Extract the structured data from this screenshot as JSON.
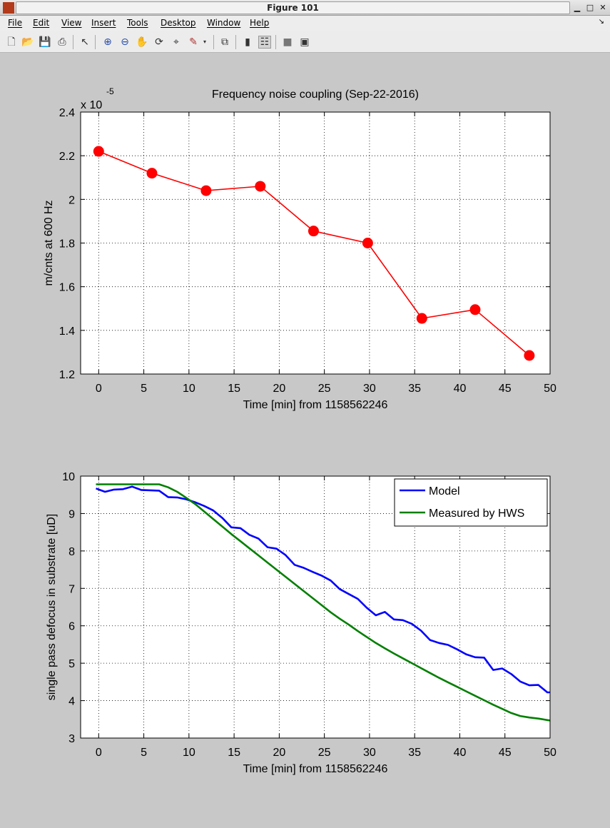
{
  "window": {
    "title": "Figure 101"
  },
  "menu": [
    "File",
    "Edit",
    "View",
    "Insert",
    "Tools",
    "Desktop",
    "Window",
    "Help"
  ],
  "toolbar_icons": [
    "new-figure-icon",
    "open-file-icon",
    "save-icon",
    "print-icon",
    "pointer-icon",
    "zoom-in-icon",
    "zoom-out-icon",
    "pan-icon",
    "rotate-icon",
    "data-cursor-icon",
    "brush-icon",
    "brush-menu-icon",
    "link-plot-icon",
    "colorbar-icon",
    "legend-icon",
    "hide-plot-tools-icon",
    "show-plot-tools-icon"
  ],
  "chart_data": [
    {
      "type": "line",
      "title": "Frequency noise coupling (Sep-22-2016)",
      "xlabel": "Time [min] from 1158562246",
      "ylabel": "m/cnts at  600 Hz",
      "exponent_label": "x 10",
      "exponent": "-5",
      "xlim": [
        -2,
        50
      ],
      "ylim": [
        1.2,
        2.4
      ],
      "xticks": [
        "0",
        "5",
        "10",
        "15",
        "20",
        "25",
        "30",
        "35",
        "40",
        "45",
        "50"
      ],
      "yticks": [
        "1.2",
        "1.4",
        "1.6",
        "1.8",
        "2",
        "2.2",
        "2.4"
      ],
      "grid": true,
      "series": [
        {
          "color": "#ff0000",
          "marker": "circle",
          "x": [
            0,
            5.9,
            11.9,
            17.9,
            23.8,
            29.8,
            35.8,
            41.7,
            47.7
          ],
          "y": [
            2.22,
            2.12,
            2.04,
            2.06,
            1.855,
            1.8,
            1.455,
            1.495,
            1.285
          ]
        }
      ]
    },
    {
      "type": "line",
      "title": "",
      "xlabel": "Time [min] from 1158562246",
      "ylabel": "single pass defocus in substrate [uD]",
      "xlim": [
        -2,
        50
      ],
      "ylim": [
        3,
        10
      ],
      "xticks": [
        "0",
        "5",
        "10",
        "15",
        "20",
        "25",
        "30",
        "35",
        "40",
        "45",
        "50"
      ],
      "yticks": [
        "3",
        "4",
        "5",
        "6",
        "7",
        "8",
        "9",
        "10"
      ],
      "grid": true,
      "legend_position": "top-right",
      "series": [
        {
          "name": "Model",
          "color": "#0000ff",
          "x": [
            -0.3,
            0.7,
            1.7,
            2.7,
            3.7,
            4.7,
            5.7,
            6.7,
            7.7,
            8.7,
            9.7,
            10.7,
            11.7,
            12.7,
            13.7,
            14.7,
            15.7,
            16.7,
            17.7,
            18.7,
            19.7,
            20.7,
            21.7,
            22.7,
            23.7,
            24.7,
            25.7,
            26.7,
            27.7,
            28.7,
            29.7,
            30.7,
            31.7,
            32.7,
            33.7,
            34.7,
            35.7,
            36.7,
            37.7,
            38.7,
            39.7,
            40.7,
            41.7,
            42.7,
            43.7,
            44.7,
            45.7,
            46.7,
            47.7,
            48.7,
            49.7,
            50
          ],
          "y": [
            9.67,
            9.58,
            9.64,
            9.65,
            9.72,
            9.63,
            9.62,
            9.61,
            9.44,
            9.43,
            9.38,
            9.3,
            9.2,
            9.08,
            8.88,
            8.63,
            8.61,
            8.43,
            8.33,
            8.1,
            8.06,
            7.89,
            7.63,
            7.55,
            7.44,
            7.34,
            7.21,
            6.98,
            6.85,
            6.72,
            6.48,
            6.28,
            6.37,
            6.17,
            6.15,
            6.05,
            5.87,
            5.62,
            5.54,
            5.49,
            5.37,
            5.24,
            5.16,
            5.15,
            4.82,
            4.86,
            4.71,
            4.51,
            4.41,
            4.42,
            4.22,
            4.22
          ]
        },
        {
          "name": "Measured by HWS",
          "color": "#007f00",
          "x": [
            -0.3,
            1.7,
            3.7,
            5.7,
            6.7,
            7.7,
            8.7,
            9.7,
            10.7,
            11.7,
            12.7,
            13.7,
            14.7,
            15.7,
            16.7,
            17.7,
            18.7,
            19.7,
            20.7,
            21.7,
            22.7,
            23.7,
            24.7,
            25.7,
            26.7,
            27.7,
            28.7,
            29.7,
            30.7,
            31.7,
            32.7,
            33.7,
            34.7,
            35.7,
            36.7,
            37.7,
            38.7,
            39.7,
            40.7,
            41.7,
            42.7,
            43.7,
            44.7,
            45.7,
            46.7,
            47.7,
            48.7,
            49.7,
            50
          ],
          "y": [
            9.78,
            9.78,
            9.78,
            9.78,
            9.78,
            9.7,
            9.58,
            9.42,
            9.25,
            9.05,
            8.85,
            8.65,
            8.45,
            8.26,
            8.07,
            7.88,
            7.69,
            7.5,
            7.31,
            7.12,
            6.93,
            6.74,
            6.55,
            6.36,
            6.19,
            6.03,
            5.86,
            5.7,
            5.54,
            5.4,
            5.26,
            5.13,
            5.0,
            4.87,
            4.74,
            4.61,
            4.49,
            4.37,
            4.25,
            4.13,
            4.01,
            3.89,
            3.78,
            3.67,
            3.59,
            3.55,
            3.52,
            3.48,
            3.47
          ]
        }
      ]
    }
  ]
}
